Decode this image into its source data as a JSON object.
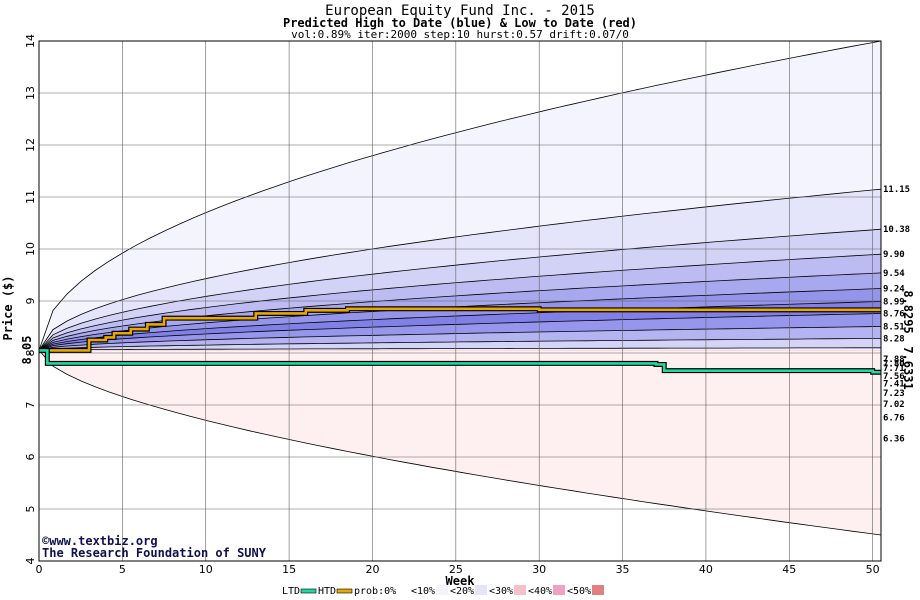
{
  "chart_data": {
    "type": "area",
    "title": "European Equity Fund Inc. - 2015",
    "subtitle": "Predicted High to Date (blue) &  Low to Date (red)",
    "params": "vol:0.89% iter:2000 step:10 hurst:0.57 drift:0.07/0",
    "xlabel": "Week",
    "ylabel": "Price ($)",
    "xlim": [
      0,
      50.5
    ],
    "ylim": [
      4,
      14
    ],
    "xticks": [
      0,
      5,
      10,
      15,
      20,
      25,
      30,
      35,
      40,
      45,
      50
    ],
    "yticks": [
      4,
      5,
      6,
      7,
      8,
      9,
      10,
      11,
      12,
      13,
      14
    ],
    "grid": true,
    "start_value": "8.05",
    "htd_final_label": "8.8295",
    "ltd_final_label": "7.6331",
    "colors": {
      "htd_line": "#e8a800",
      "ltd_line": "#20d8a0",
      "start_label": "#209060",
      "htd_label": "#a08020",
      "ltd_label": "#208080"
    },
    "credits": [
      "www.textbiz.org",
      "The Research Foundation of SUNY"
    ],
    "credit_symbol": "©",
    "high_bands": [
      {
        "end": 14.0,
        "fill": "#f4f4fe",
        "label": ""
      },
      {
        "end": 11.15,
        "fill": "#e4e4fa",
        "label": "11.15"
      },
      {
        "end": 10.38,
        "fill": "#d2d2f6",
        "label": "10.38"
      },
      {
        "end": 9.9,
        "fill": "#bcbcf2",
        "label": "9.90"
      },
      {
        "end": 9.54,
        "fill": "#a8a8ee",
        "label": "9.54"
      },
      {
        "end": 9.24,
        "fill": "#9494ea",
        "label": "9.24"
      },
      {
        "end": 8.99,
        "fill": "#8080e6",
        "label": "8.99"
      },
      {
        "end": 8.76,
        "fill": "#9696ec",
        "label": "8.76"
      },
      {
        "end": 8.51,
        "fill": "#b4b4f2",
        "label": "8.51"
      },
      {
        "end": 8.28,
        "fill": "#d4d4f8",
        "label": "8.28"
      },
      {
        "end": 8.1,
        "fill": "#f0f0fc",
        "label": ""
      }
    ],
    "low_bands": [
      {
        "end": 8.0,
        "fill": "#fcf0f0",
        "label": ""
      },
      {
        "end": 7.88,
        "fill": "#fadcdc",
        "label": "7.88"
      },
      {
        "end": 7.8,
        "fill": "#f8cccc",
        "label": "7.80"
      },
      {
        "end": 7.71,
        "fill": "#f6b8b8",
        "label": "7.71"
      },
      {
        "end": 7.56,
        "fill": "#f4a4a4",
        "label": "7.56"
      },
      {
        "end": 7.41,
        "fill": "#f29090",
        "label": "7.41"
      },
      {
        "end": 7.23,
        "fill": "#f28080",
        "label": "7.23"
      },
      {
        "end": 7.02,
        "fill": "#f49c9c",
        "label": "7.02"
      },
      {
        "end": 6.76,
        "fill": "#f8c0c0",
        "label": "6.76"
      },
      {
        "end": 6.36,
        "fill": "#fcdcdc",
        "label": "6.36"
      },
      {
        "end": 4.5,
        "fill": "#fef0f0",
        "label": ""
      }
    ],
    "series": [
      {
        "name": "HTD",
        "x": [
          0,
          2.5,
          3,
          4,
          4.5,
          5.5,
          6.5,
          7.5,
          13,
          16,
          18.5,
          30,
          50
        ],
        "values": [
          8.05,
          8.05,
          8.25,
          8.3,
          8.38,
          8.46,
          8.55,
          8.67,
          8.76,
          8.82,
          8.85,
          8.83,
          8.83
        ]
      },
      {
        "name": "LTD",
        "x": [
          0,
          0.5,
          37,
          37.5,
          50
        ],
        "values": [
          8.05,
          7.8,
          7.78,
          7.66,
          7.63
        ]
      }
    ],
    "legend": {
      "placement": "bottom",
      "items": [
        {
          "label": "LTD",
          "color": "#20d8a0",
          "kind": "line"
        },
        {
          "label": "HTD",
          "color": "#e8a800",
          "kind": "line"
        },
        {
          "label": "prob:0%",
          "color": "#ffffff",
          "kind": "swatch"
        },
        {
          "label": "<10%",
          "color": "#f4f4fe",
          "kind": "swatch"
        },
        {
          "label": "<20%",
          "color": "#e4e4fa",
          "kind": "swatch"
        },
        {
          "label": "<30%",
          "color": "#f6c0c8",
          "kind": "swatch"
        },
        {
          "label": "<40%",
          "color": "#f0a0c0",
          "kind": "swatch"
        },
        {
          "label": "<50%",
          "color": "#e08080",
          "kind": "swatch"
        }
      ]
    }
  }
}
